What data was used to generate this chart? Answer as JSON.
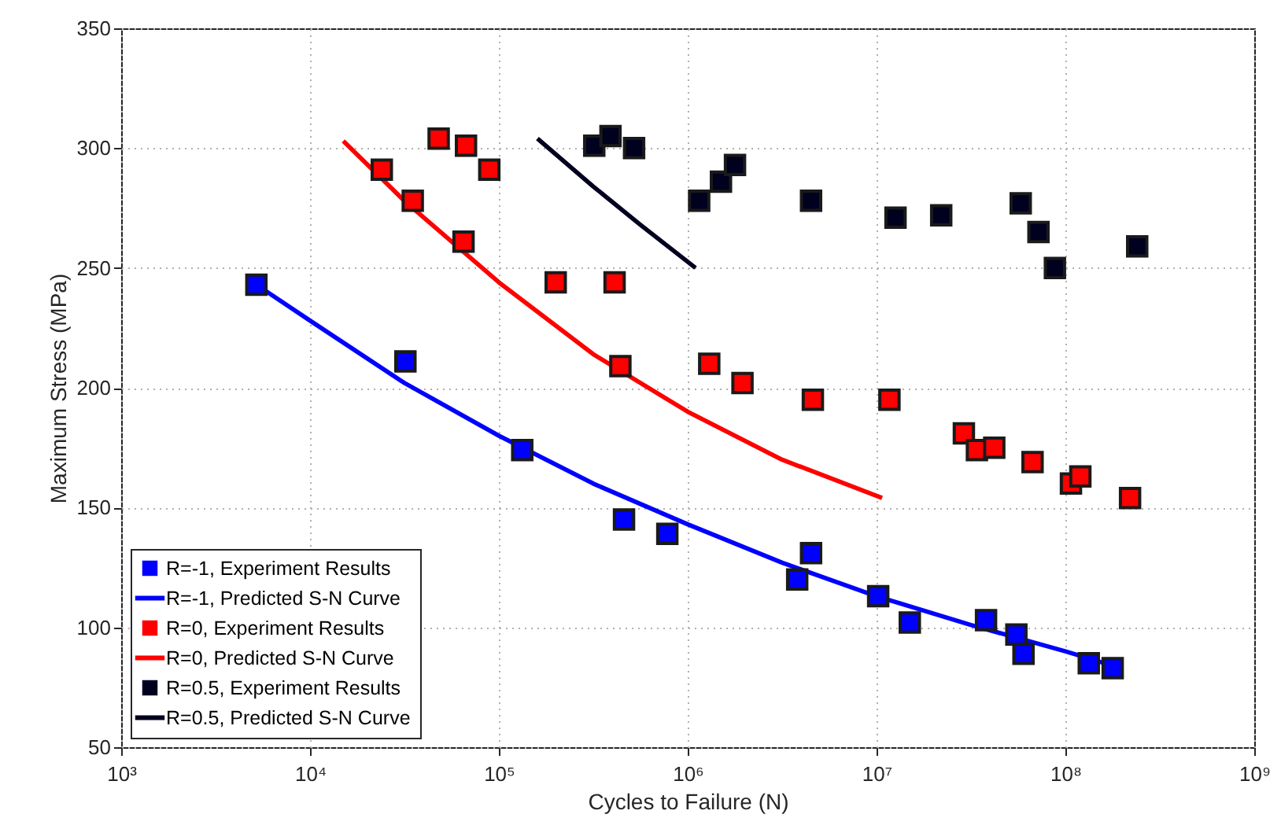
{
  "chart_data": {
    "type": "scatter",
    "xlabel": "Cycles to Failure (N)",
    "ylabel": "Maximum Stress (MPa)",
    "log": "x",
    "xlim": [
      1000,
      1000000000
    ],
    "xticks": [
      {
        "value": 1000,
        "label": "10³"
      },
      {
        "value": 10000,
        "label": "10⁴"
      },
      {
        "value": 100000,
        "label": "10⁵"
      },
      {
        "value": 1000000,
        "label": "10⁶"
      },
      {
        "value": 10000000,
        "label": "10⁷"
      },
      {
        "value": 100000000,
        "label": "10⁸"
      },
      {
        "value": 1000000000,
        "label": "10⁹"
      }
    ],
    "ylim": [
      50,
      350
    ],
    "yticks": [
      50,
      100,
      150,
      200,
      250,
      300,
      350
    ],
    "grid": true,
    "legend": "bottom left",
    "series": [
      {
        "name": "R=-1, Experiment Results",
        "marker": "square",
        "color": "#0000ff",
        "x": [
          5200,
          32000,
          133000,
          460000,
          780000,
          4500000,
          3800000,
          10200000,
          15000000,
          38000000,
          55000000,
          60000000,
          133000000,
          178000000
        ],
        "values": [
          243,
          211,
          174,
          145,
          139,
          131,
          120,
          113,
          102,
          103,
          97,
          89,
          85,
          83
        ]
      },
      {
        "name": "R=-1, Predicted S-N Curve",
        "type": "line",
        "color": "#0000ff",
        "x": [
          5200,
          10000,
          31600,
          100000,
          316000,
          1000000,
          3160000,
          10000000,
          31600000,
          100000000,
          178000000
        ],
        "values": [
          243,
          228,
          202,
          180,
          160,
          143,
          127,
          113,
          101,
          90,
          84
        ]
      },
      {
        "name": "R=0, Experiment Results",
        "marker": "square",
        "color": "#ff0000",
        "x": [
          24000,
          35000,
          48000,
          67000,
          89000,
          65000,
          200000,
          410000,
          440000,
          1300000,
          1950000,
          4600000,
          11700000,
          29000000,
          34000000,
          42000000,
          67000000,
          107000000,
          120000000,
          220000000
        ],
        "values": [
          291,
          278,
          304,
          301,
          291,
          261,
          244,
          244,
          209,
          210,
          202,
          195,
          195,
          181,
          174,
          175,
          169,
          160,
          163,
          154
        ]
      },
      {
        "name": "R=0, Predicted S-N Curve",
        "type": "line",
        "color": "#ff0000",
        "x": [
          15000,
          31600,
          100000,
          316000,
          1000000,
          3160000,
          10700000
        ],
        "values": [
          303,
          278,
          244,
          214,
          190,
          170,
          154
        ]
      },
      {
        "name": "R=0.5, Experiment Results",
        "marker": "square",
        "color": "#00001f",
        "x": [
          320000,
          390000,
          520000,
          1150000,
          1500000,
          1780000,
          4500000,
          12600000,
          22000000,
          58000000,
          72000000,
          88000000,
          240000000
        ],
        "values": [
          301,
          305,
          300,
          278,
          286,
          293,
          278,
          271,
          272,
          277,
          265,
          250,
          259
        ]
      },
      {
        "name": "R=0.5, Predicted S-N Curve",
        "type": "line",
        "color": "#00001f",
        "x": [
          160000,
          316000,
          562000,
          1100000
        ],
        "values": [
          304,
          284,
          268,
          250
        ]
      }
    ]
  }
}
